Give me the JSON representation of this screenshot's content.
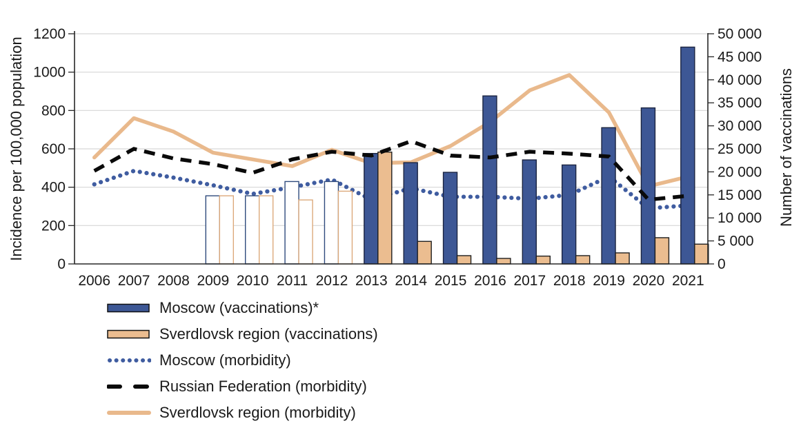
{
  "chart_data": {
    "type": "combo",
    "title": "",
    "x": [
      2006,
      2007,
      2008,
      2009,
      2010,
      2011,
      2012,
      2013,
      2014,
      2015,
      2016,
      2017,
      2018,
      2019,
      2020,
      2021
    ],
    "ylabel_left": "Incidence per 100,000 population",
    "ylabel_right": "Number of vaccinations",
    "ylim_left": [
      0,
      1200
    ],
    "left_tick_step": 200,
    "left_tick_labels": [
      "0",
      "200",
      "400",
      "600",
      "800",
      "1000",
      "1200"
    ],
    "ylim_right": [
      0,
      50000
    ],
    "right_tick_step": 5000,
    "right_tick_labels": [
      "0",
      "5 000",
      "10 000",
      "15 000",
      "20 000",
      "25 000",
      "30 000",
      "35 000",
      "40 000",
      "45 000",
      "50 000"
    ],
    "grid": true,
    "legend_position": "bottom-left",
    "hollow_bar_years": [
      2009,
      2010,
      2011,
      2012
    ],
    "series": [
      {
        "name": "Moscow (vaccinations)*",
        "type": "bar",
        "axis": "right",
        "values": [
          null,
          null,
          null,
          14800,
          14800,
          17900,
          17900,
          24000,
          22000,
          19900,
          36500,
          22600,
          21500,
          29600,
          33900,
          47100
        ]
      },
      {
        "name": "Sverdlovsk region (vaccinations)",
        "type": "bar",
        "axis": "right",
        "values": [
          null,
          null,
          null,
          14800,
          14800,
          13900,
          15800,
          24300,
          4900,
          1800,
          1200,
          1700,
          1800,
          2400,
          5700,
          4300
        ]
      },
      {
        "name": "Moscow (morbidity)",
        "type": "line",
        "line_style": "dotted",
        "axis": "left",
        "values": [
          415,
          485,
          450,
          410,
          365,
          400,
          440,
          335,
          395,
          350,
          350,
          340,
          360,
          455,
          290,
          305
        ]
      },
      {
        "name": "Russian Federation (morbidity)",
        "type": "line",
        "line_style": "dashed",
        "axis": "left",
        "values": [
          485,
          600,
          550,
          520,
          475,
          545,
          585,
          565,
          640,
          565,
          555,
          585,
          575,
          560,
          335,
          355
        ]
      },
      {
        "name": "Sverdlovsk region (morbidity)",
        "type": "line",
        "line_style": "solid",
        "axis": "left",
        "values": [
          555,
          760,
          690,
          580,
          545,
          510,
          595,
          525,
          530,
          615,
          740,
          905,
          985,
          790,
          405,
          455
        ]
      }
    ],
    "colors": {
      "moscow_bar_fill": "#3D5795",
      "moscow_bar_border": "#1B2440",
      "moscow_bar_hollow_stroke": "#2E4A7C",
      "sverdlovsk_bar_fill": "#EBBD90",
      "sverdlovsk_bar_border": "#1F1F1F",
      "sverdlovsk_bar_hollow_stroke": "#DCA97B",
      "moscow_line": "#3F5CA0",
      "rf_line": "#0A0A0A",
      "sverdlovsk_line": "#E9B98C",
      "gridline": "#D6D6D6",
      "axis": "#262626"
    }
  }
}
